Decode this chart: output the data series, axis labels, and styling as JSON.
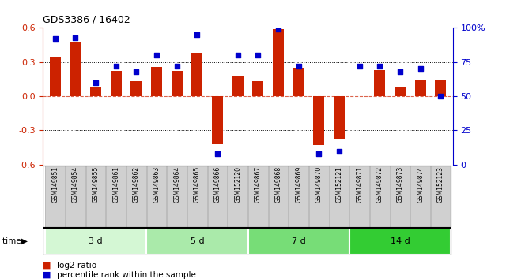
{
  "title": "GDS3386 / 16402",
  "samples": [
    "GSM149851",
    "GSM149854",
    "GSM149855",
    "GSM149861",
    "GSM149862",
    "GSM149863",
    "GSM149864",
    "GSM149865",
    "GSM149866",
    "GSM152120",
    "GSM149867",
    "GSM149868",
    "GSM149869",
    "GSM149870",
    "GSM152121",
    "GSM149871",
    "GSM149872",
    "GSM149873",
    "GSM149874",
    "GSM152123"
  ],
  "log2_ratio": [
    0.35,
    0.48,
    0.08,
    0.22,
    0.13,
    0.26,
    0.22,
    0.38,
    -0.42,
    0.18,
    0.13,
    0.59,
    0.25,
    -0.43,
    -0.37,
    0.0,
    0.23,
    0.08,
    0.14,
    0.14
  ],
  "percentile": [
    92,
    93,
    60,
    72,
    68,
    80,
    72,
    95,
    8,
    80,
    80,
    99,
    72,
    8,
    10,
    72,
    72,
    68,
    70,
    50
  ],
  "groups": [
    {
      "label": "3 d",
      "start": 0,
      "end": 5,
      "color": "#d4f7d4"
    },
    {
      "label": "5 d",
      "start": 5,
      "end": 10,
      "color": "#aaeaaa"
    },
    {
      "label": "7 d",
      "start": 10,
      "end": 15,
      "color": "#77dd77"
    },
    {
      "label": "14 d",
      "start": 15,
      "end": 20,
      "color": "#33cc33"
    }
  ],
  "bar_color": "#cc2200",
  "dot_color": "#0000cc",
  "ylim_left": [
    -0.6,
    0.6
  ],
  "ylim_right": [
    0,
    100
  ],
  "yticks_left": [
    -0.6,
    -0.3,
    0.0,
    0.3,
    0.6
  ],
  "yticks_right": [
    0,
    25,
    50,
    75,
    100
  ],
  "ytick_labels_right": [
    "0",
    "25",
    "50",
    "75",
    "100%"
  ],
  "legend_items": [
    {
      "label": "log2 ratio",
      "color": "#cc2200"
    },
    {
      "label": "percentile rank within the sample",
      "color": "#0000cc"
    }
  ],
  "sample_box_color": "#d0d0d0",
  "sample_box_edge": "#aaaaaa"
}
